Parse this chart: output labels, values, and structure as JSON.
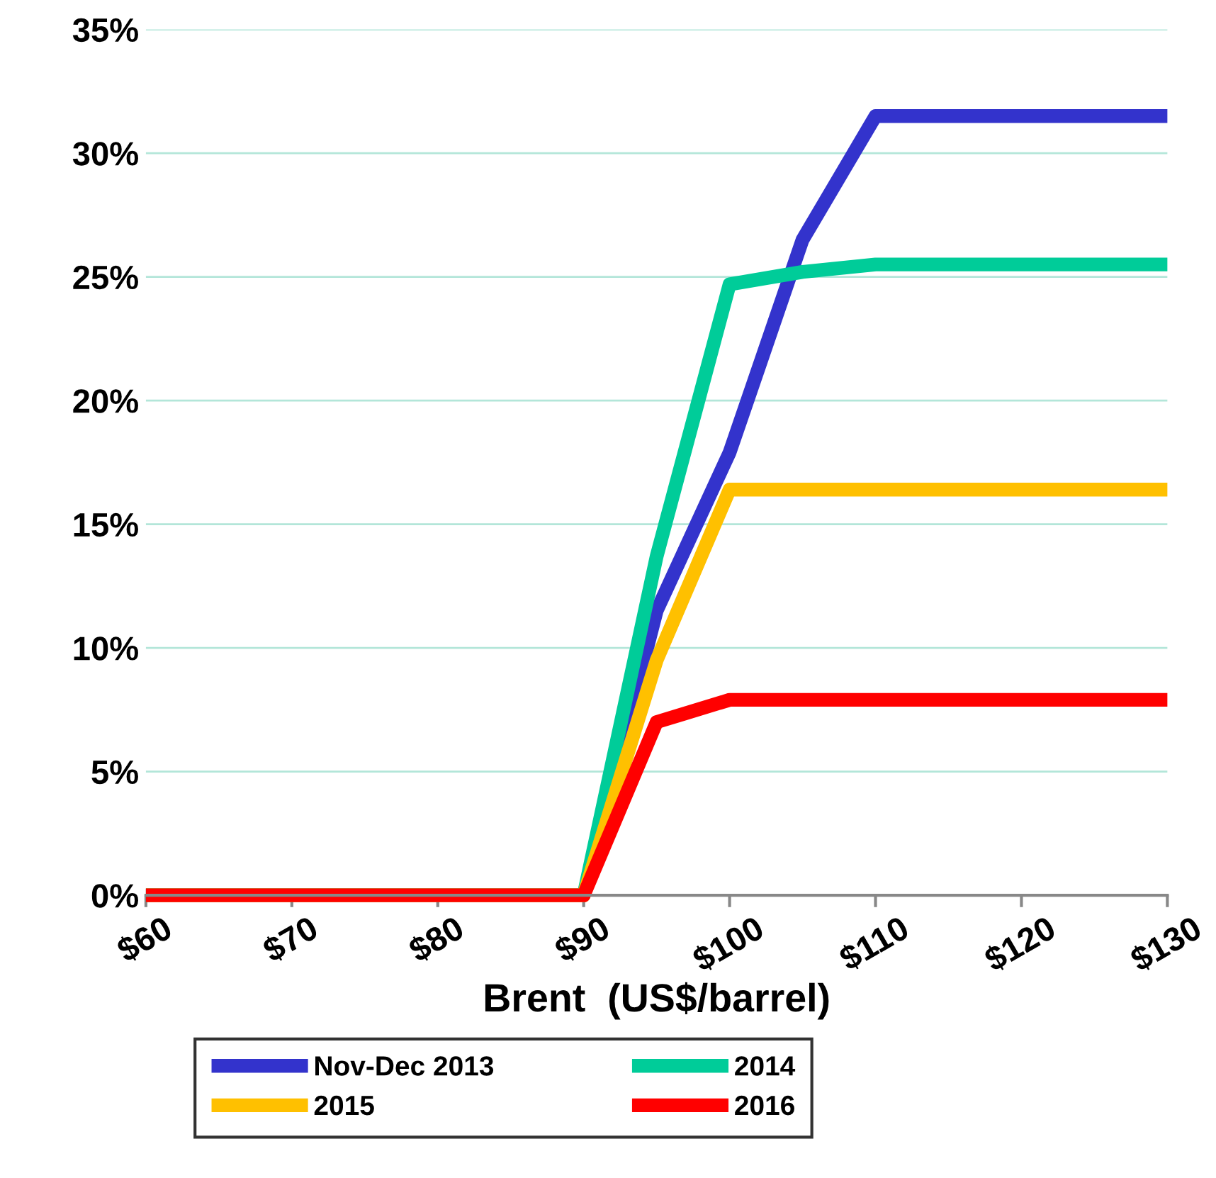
{
  "chart_data": {
    "type": "line",
    "xlabel": "Brent  (US$/barrel)",
    "x": [
      60,
      90,
      95,
      100,
      105,
      110,
      130
    ],
    "series": [
      {
        "name": "Nov-Dec 2013",
        "color": "#3333cc",
        "values": [
          0,
          0,
          11.5,
          17.9,
          26.5,
          31.5,
          31.5
        ]
      },
      {
        "name": "2014",
        "color": "#00cc99",
        "values": [
          0,
          0,
          13.7,
          24.7,
          25.2,
          25.5,
          25.5
        ]
      },
      {
        "name": "2015",
        "color": "#ffc000",
        "values": [
          0,
          0,
          9.5,
          16.4,
          16.4,
          16.4,
          16.4
        ]
      },
      {
        "name": "2016",
        "color": "#ff0000",
        "values": [
          0,
          0,
          7.0,
          7.9,
          7.9,
          7.9,
          7.9
        ]
      }
    ],
    "xlim": [
      60,
      130
    ],
    "xticks": [
      {
        "value": 60,
        "label": "$60"
      },
      {
        "value": 70,
        "label": "$70"
      },
      {
        "value": 80,
        "label": "$80"
      },
      {
        "value": 90,
        "label": "$90"
      },
      {
        "value": 100,
        "label": "$100"
      },
      {
        "value": 110,
        "label": "$110"
      },
      {
        "value": 120,
        "label": "$120"
      },
      {
        "value": 130,
        "label": "$130"
      }
    ],
    "ylim": [
      0,
      35
    ],
    "yticks": [
      {
        "value": 0,
        "label": "0%"
      },
      {
        "value": 5,
        "label": "5%"
      },
      {
        "value": 10,
        "label": "10%"
      },
      {
        "value": 15,
        "label": "15%"
      },
      {
        "value": 20,
        "label": "20%"
      },
      {
        "value": 25,
        "label": "25%"
      },
      {
        "value": 30,
        "label": "30%"
      },
      {
        "value": 35,
        "label": "35%"
      }
    ],
    "grid": "y",
    "legend": "bottom",
    "line_style": "solid"
  }
}
